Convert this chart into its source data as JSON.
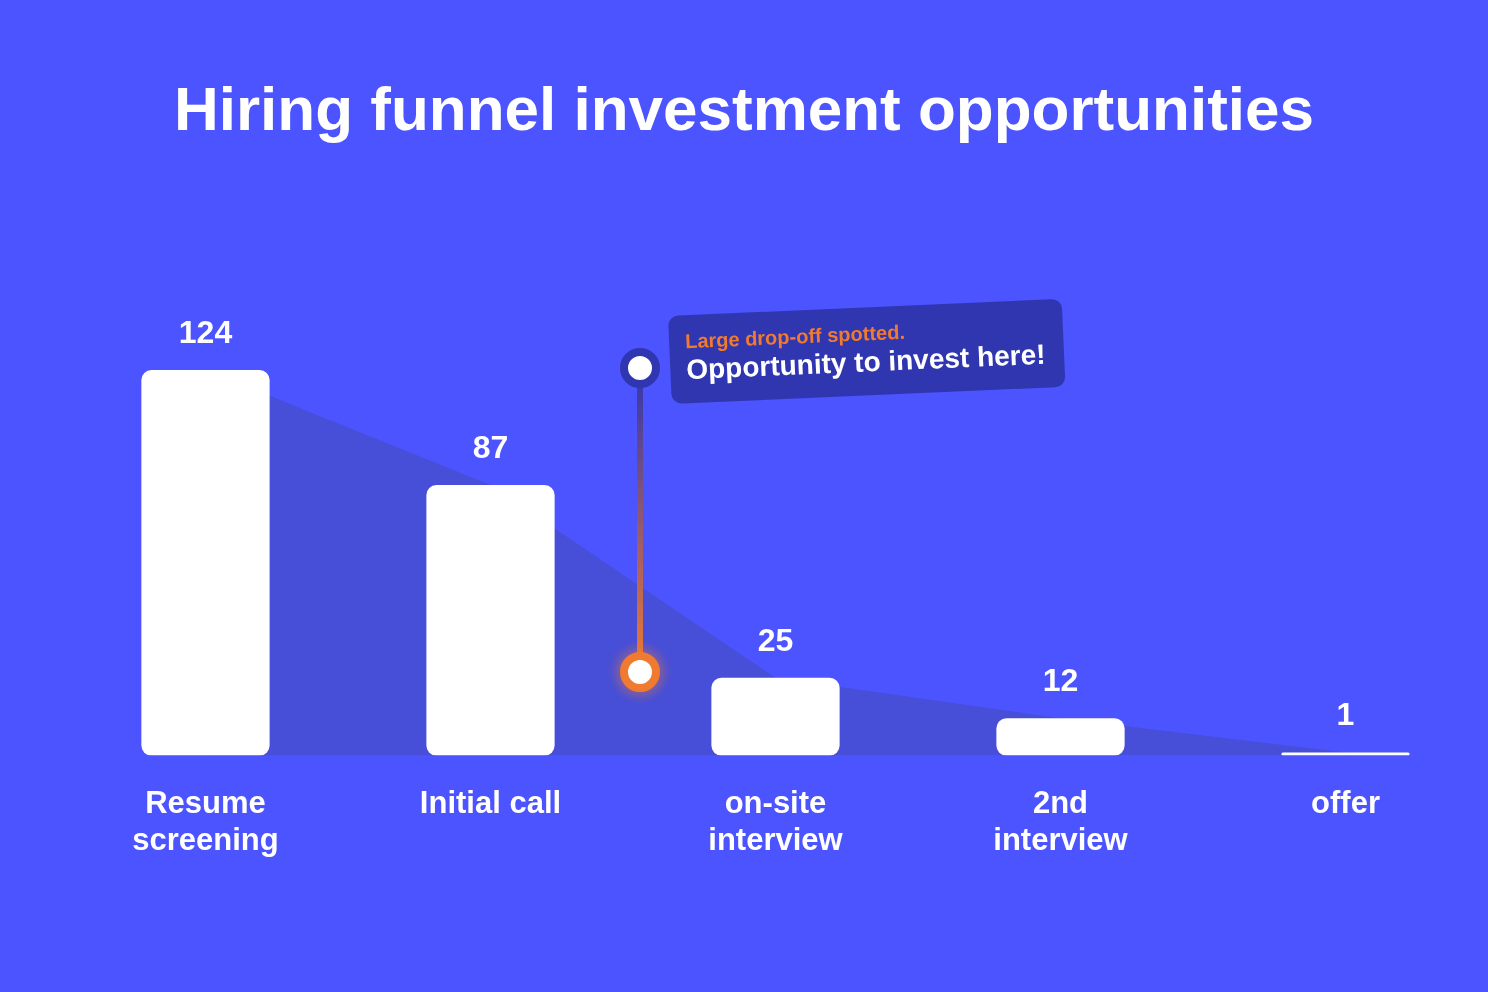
{
  "chart_data": {
    "type": "bar",
    "title": "Hiring funnel investment opportunities",
    "categories": [
      "Resume screening",
      "Initial call",
      "on-site interview",
      "2nd interview",
      "offer"
    ],
    "series": [
      {
        "color": "#ffffff",
        "values": [
          124,
          87,
          25,
          12,
          1
        ],
        "value_labels": [
          "124",
          "87",
          "25",
          "12",
          "1"
        ]
      },
      {
        "type": "area",
        "color": "#474fd8",
        "values": [
          124,
          87,
          25,
          12,
          1
        ]
      }
    ],
    "tick_labels": "x",
    "annotations": [
      "Large drop-off spotted.",
      "Opportunity to invest here!"
    ]
  }
}
